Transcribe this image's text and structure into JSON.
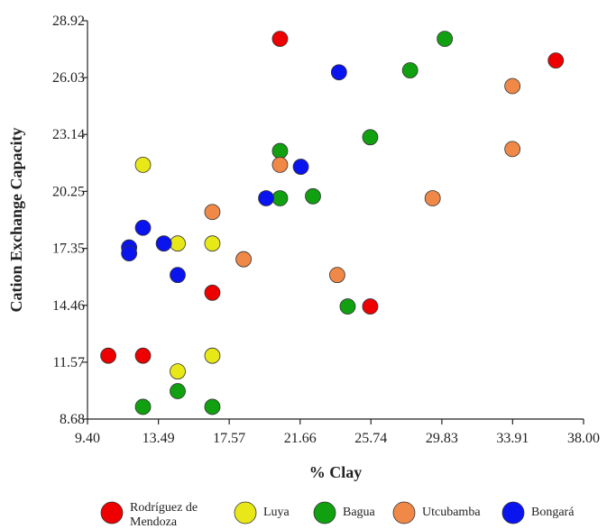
{
  "chart_data": {
    "type": "scatter",
    "title": "",
    "xlabel": "% Clay",
    "ylabel": "Cation Exchange Capacity",
    "xlim": [
      9.4,
      38.0
    ],
    "ylim": [
      8.68,
      28.92
    ],
    "xticks": [
      "9.40",
      "13.49",
      "17.57",
      "21.66",
      "25.74",
      "29.83",
      "33.91",
      "38.00"
    ],
    "yticks": [
      "8.68",
      "11.57",
      "14.46",
      "17.35",
      "20.25",
      "23.14",
      "26.03",
      "28.92"
    ],
    "grid": false,
    "legend_position": "bottom",
    "series": [
      {
        "name": "Rodríguez de Mendoza",
        "color": "#ee0000",
        "points": [
          [
            10.6,
            11.9
          ],
          [
            12.6,
            11.9
          ],
          [
            16.6,
            15.1
          ],
          [
            20.5,
            28.0
          ],
          [
            25.7,
            14.4
          ],
          [
            36.4,
            26.9
          ]
        ]
      },
      {
        "name": "Luya",
        "color": "#e8e818",
        "points": [
          [
            12.6,
            21.6
          ],
          [
            14.6,
            17.6
          ],
          [
            16.6,
            17.6
          ],
          [
            14.6,
            11.1
          ],
          [
            16.6,
            11.9
          ]
        ]
      },
      {
        "name": "Bagua",
        "color": "#10a010",
        "points": [
          [
            12.6,
            9.3
          ],
          [
            14.6,
            10.1
          ],
          [
            16.6,
            9.3
          ],
          [
            20.5,
            22.3
          ],
          [
            20.5,
            19.9
          ],
          [
            22.4,
            20.0
          ],
          [
            24.4,
            14.4
          ],
          [
            25.7,
            23.0
          ],
          [
            28.0,
            26.4
          ],
          [
            30.0,
            28.0
          ]
        ]
      },
      {
        "name": "Utcubamba",
        "color": "#f08848",
        "points": [
          [
            16.6,
            19.2
          ],
          [
            18.4,
            16.8
          ],
          [
            20.5,
            21.6
          ],
          [
            23.8,
            16.0
          ],
          [
            29.3,
            19.9
          ],
          [
            33.9,
            25.6
          ],
          [
            33.9,
            22.4
          ]
        ]
      },
      {
        "name": "Bongará",
        "color": "#0a14ee",
        "points": [
          [
            11.8,
            17.4
          ],
          [
            11.8,
            17.1
          ],
          [
            12.6,
            18.4
          ],
          [
            13.8,
            17.6
          ],
          [
            14.6,
            16.0
          ],
          [
            19.7,
            19.9
          ],
          [
            21.7,
            21.5
          ],
          [
            23.9,
            26.3
          ]
        ]
      }
    ]
  },
  "legend": [
    {
      "label": "Rodríguez de",
      "label2": "Mendoza",
      "color": "#ee0000"
    },
    {
      "label": "Luya",
      "label2": "",
      "color": "#e8e818"
    },
    {
      "label": "Bagua",
      "label2": "",
      "color": "#10a010"
    },
    {
      "label": "Utcubamba",
      "label2": "",
      "color": "#f08848"
    },
    {
      "label": "Bongará",
      "label2": "",
      "color": "#0a14ee"
    }
  ]
}
